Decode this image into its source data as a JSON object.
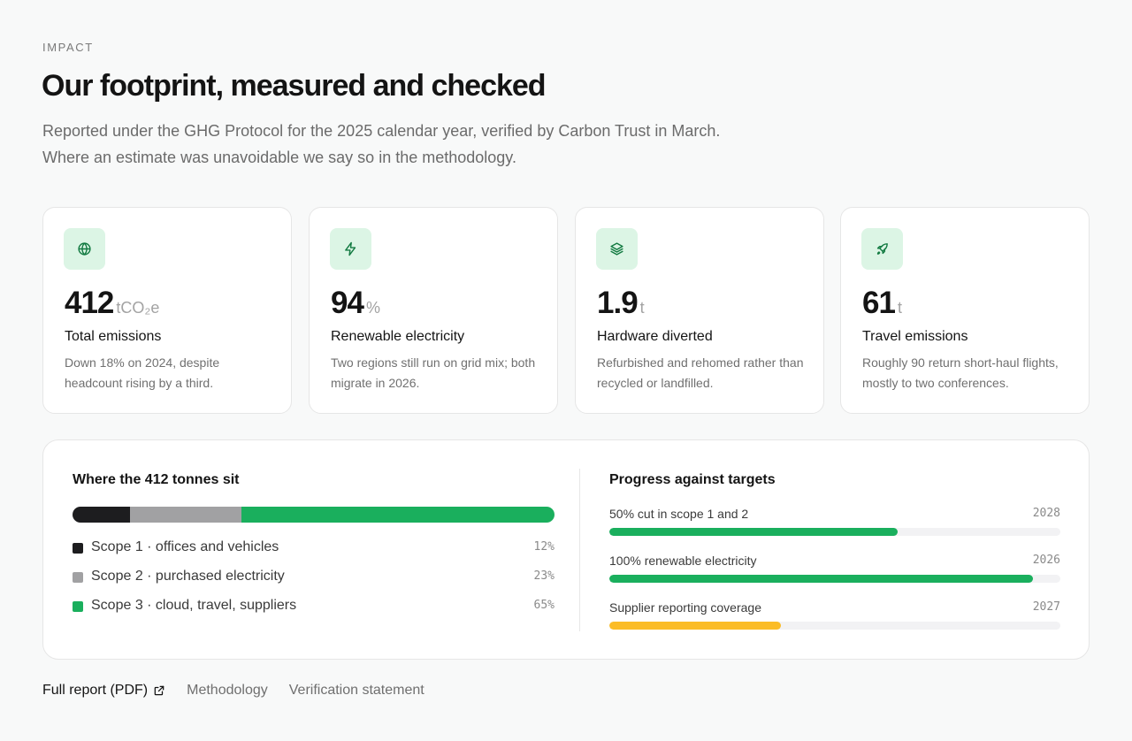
{
  "header": {
    "eyebrow": "IMPACT",
    "title": "Our footprint, measured and checked",
    "intro": "Reported under the GHG Protocol for the 2025 calendar year, verified by Carbon Trust in March. Where an estimate was unavoidable we say so in the methodology."
  },
  "colors": {
    "accent": "#1aaf5d",
    "icon_bg": "#dcf5e5",
    "scope1": "#1d1d1f",
    "scope2": "#a1a1a3",
    "scope3": "#1aaf5d",
    "warning": "#fbbc26"
  },
  "cards": [
    {
      "icon": "globe-icon",
      "value": "412",
      "unit": "tCO₂e",
      "label": "Total emissions",
      "desc": "Down 18% on 2024, despite headcount rising by a third."
    },
    {
      "icon": "lightning-icon",
      "value": "94",
      "unit": "%",
      "label": "Renewable electricity",
      "desc": "Two regions still run on grid mix; both migrate in 2026."
    },
    {
      "icon": "layers-icon",
      "value": "1.9",
      "unit": "t",
      "label": "Hardware diverted",
      "desc": "Refurbished and rehomed rather than recycled or landfilled."
    },
    {
      "icon": "rocket-icon",
      "value": "61",
      "unit": "t",
      "label": "Travel emissions",
      "desc": "Roughly 90 return short-haul flights, mostly to two conferences."
    }
  ],
  "breakdown": {
    "title": "Where the 412 tonnes sit",
    "scopes": [
      {
        "label": "Scope 1 · offices and vehicles",
        "pct_text": "12%",
        "share": 12
      },
      {
        "label": "Scope 2 · purchased electricity",
        "pct_text": "23%",
        "share": 23
      },
      {
        "label": "Scope 3 · cloud, travel, suppliers",
        "pct_text": "65%",
        "share": 65
      }
    ]
  },
  "targets": {
    "title": "Progress against targets",
    "items": [
      {
        "label": "50% cut in scope 1 and 2",
        "year": "2028",
        "progress": 64
      },
      {
        "label": "100% renewable electricity",
        "year": "2026",
        "progress": 94
      },
      {
        "label": "Supplier reporting coverage",
        "year": "2027",
        "progress": 38
      }
    ]
  },
  "links": {
    "report": "Full report (PDF)",
    "report_icon": "external-link-icon",
    "methodology": "Methodology",
    "verification": "Verification statement"
  }
}
